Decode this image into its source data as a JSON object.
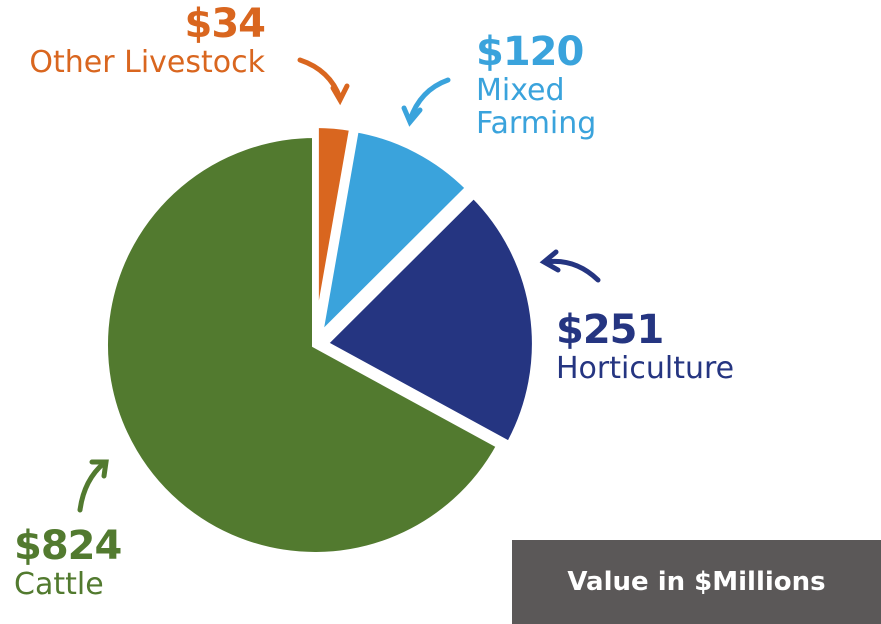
{
  "chart_data": {
    "type": "pie",
    "categories": [
      "Other Livestock",
      "Mixed Farming",
      "Horticulture",
      "Cattle"
    ],
    "values": [
      34,
      120,
      251,
      824
    ],
    "value_labels": [
      "$34",
      "$120",
      "$251",
      "$824"
    ],
    "colors": [
      "#d9661f",
      "#3aa3dc",
      "#253581",
      "#527a2f"
    ],
    "note": "Value in $Millions"
  }
}
